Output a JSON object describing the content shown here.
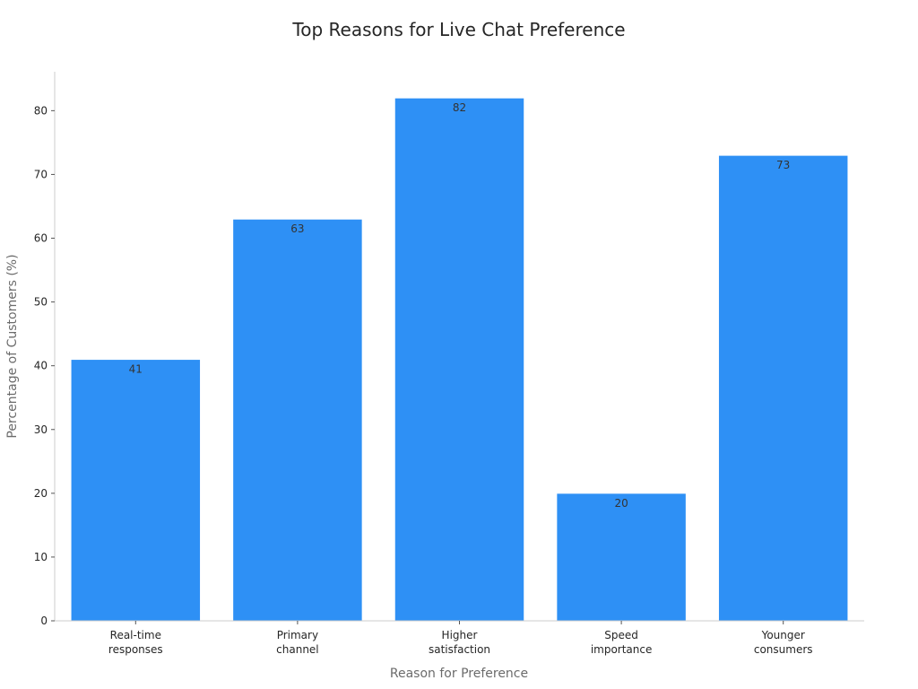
{
  "chart_data": {
    "type": "bar",
    "title": "Top Reasons for Live Chat Preference",
    "xlabel": "Reason for Preference",
    "ylabel": "Percentage of Customers (%)",
    "categories": [
      [
        "Real-time",
        "responses"
      ],
      [
        "Primary",
        "channel"
      ],
      [
        "Higher",
        "satisfaction"
      ],
      [
        "Speed",
        "importance"
      ],
      [
        "Younger",
        "consumers"
      ]
    ],
    "values": [
      41,
      63,
      82,
      20,
      73
    ],
    "data_labels": [
      "41",
      "63",
      "82",
      "20",
      "73"
    ],
    "yticks": [
      0,
      10,
      20,
      30,
      40,
      50,
      60,
      70,
      80
    ],
    "ylim": [
      0,
      86.1
    ],
    "grid": false,
    "bar_color": "#2e90f5",
    "bar_edge_color": "#ffffff"
  }
}
